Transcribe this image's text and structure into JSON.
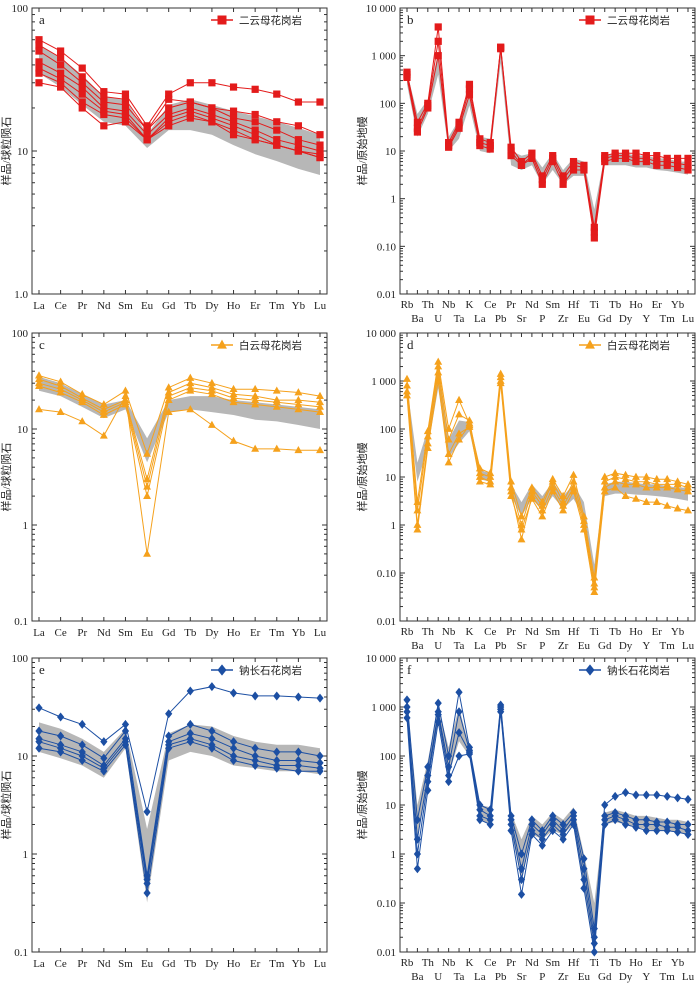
{
  "figure": {
    "colors": {
      "red": "#e31b1b",
      "orange": "#f5a11c",
      "blue": "#1c4fa3",
      "band": "#b7b7b7"
    },
    "ree_elements": [
      "La",
      "Ce",
      "Pr",
      "Nd",
      "Sm",
      "Eu",
      "Gd",
      "Tb",
      "Dy",
      "Ho",
      "Er",
      "Tm",
      "Yb",
      "Lu"
    ],
    "spider_top": [
      "Rb",
      "Th",
      "Nb",
      "K",
      "Ce",
      "Pr",
      "Nd",
      "Sm",
      "Hf",
      "Ti",
      "Tb",
      "Ho",
      "Er",
      "Yb"
    ],
    "spider_bottom": [
      "Ba",
      "U",
      "Ta",
      "La",
      "Pb",
      "Sr",
      "P",
      "Zr",
      "Eu",
      "Gd",
      "Dy",
      "Y",
      "Tm",
      "Lu"
    ],
    "ylabel_ree": "样品/球粒陨石",
    "ylabel_spider": "样品/原始地幔"
  },
  "chart_data": [
    {
      "id": "a",
      "letter": "a",
      "type": "line",
      "kind": "ree",
      "legend": "二云母花岗岩",
      "color": "red",
      "marker": "square",
      "y_scale": "log",
      "ylim": [
        1,
        100
      ],
      "y_ticks": [
        "1.0",
        "10",
        "100"
      ],
      "series": [
        {
          "values": [
            60,
            50,
            38,
            26,
            25,
            15,
            25,
            30,
            30,
            28,
            27,
            25,
            22,
            22
          ]
        },
        {
          "values": [
            55,
            45,
            33,
            24,
            23,
            14,
            23,
            22,
            20,
            19,
            18,
            16,
            15,
            13
          ]
        },
        {
          "values": [
            50,
            40,
            30,
            22,
            21,
            14,
            20,
            22,
            20,
            17,
            16,
            14,
            12,
            11
          ]
        },
        {
          "values": [
            42,
            35,
            28,
            20,
            19,
            13,
            18,
            20,
            18,
            16,
            14,
            12,
            11,
            10
          ]
        },
        {
          "values": [
            38,
            32,
            25,
            19,
            18,
            12,
            17,
            19,
            17,
            15,
            13,
            11,
            10,
            9.5
          ]
        },
        {
          "values": [
            35,
            30,
            22,
            18,
            17,
            12,
            16,
            18,
            16,
            14,
            12,
            11,
            10,
            9
          ]
        },
        {
          "values": [
            30,
            28,
            20,
            15,
            16,
            12,
            15,
            17,
            16,
            13,
            12,
            11,
            10,
            9
          ]
        }
      ],
      "band_upper": [
        55,
        45,
        34,
        24,
        23,
        13,
        21,
        23,
        21,
        19,
        17.5,
        16,
        14.5,
        13
      ],
      "band_lower": [
        35,
        28,
        21,
        16,
        15,
        10.5,
        14,
        14,
        13,
        11,
        9.5,
        8.5,
        7.5,
        6.8
      ]
    },
    {
      "id": "b",
      "letter": "b",
      "type": "line",
      "kind": "spider",
      "legend": "二云母花岗岩",
      "color": "red",
      "marker": "square",
      "y_scale": "log",
      "ylim": [
        0.01,
        10000
      ],
      "y_ticks": [
        "0.01",
        "0.10",
        "1",
        "10",
        "100",
        "1 000",
        "10 000"
      ],
      "series": [
        {
          "values": [
            450,
            40,
            100,
            4000,
            15,
            40,
            250,
            18,
            15,
            1500,
            12,
            6,
            9,
            3,
            8,
            3,
            6,
            5,
            0.25,
            8,
            9,
            9,
            9,
            8,
            8,
            7,
            7,
            7
          ]
        },
        {
          "values": [
            400,
            30,
            90,
            2000,
            13,
            35,
            200,
            15,
            13,
            1500,
            10,
            5,
            8,
            2.5,
            7,
            2.5,
            5,
            4.5,
            0.2,
            7,
            8,
            8,
            7,
            7,
            6,
            6,
            5.5,
            5
          ]
        },
        {
          "values": [
            350,
            25,
            80,
            1000,
            12,
            30,
            150,
            13,
            11,
            1400,
            8,
            5,
            7,
            2,
            6,
            2,
            4,
            4,
            0.15,
            6,
            7,
            7,
            6,
            6,
            5,
            5,
            4.5,
            4
          ]
        }
      ],
      "band_upper": [
        450,
        60,
        120,
        1200,
        20,
        45,
        160,
        20,
        18,
        1600,
        10,
        8,
        9,
        4.5,
        9,
        4,
        7,
        6,
        0.6,
        8,
        9,
        9,
        8,
        8,
        7,
        7,
        6,
        6
      ],
      "band_lower": [
        250,
        20,
        60,
        400,
        10,
        18,
        90,
        10,
        9,
        700,
        5,
        4,
        5,
        2,
        4,
        2,
        3,
        3,
        0.2,
        5,
        5,
        5,
        4.5,
        4.5,
        4,
        3.8,
        3.5,
        3.2
      ]
    },
    {
      "id": "c",
      "letter": "c",
      "type": "line",
      "kind": "ree",
      "legend": "白云母花岗岩",
      "color": "orange",
      "marker": "triangle",
      "y_scale": "log",
      "ylim": [
        0.1,
        100
      ],
      "y_ticks": [
        "0.1",
        "1",
        "10",
        "100"
      ],
      "series": [
        {
          "values": [
            36,
            31,
            23,
            18,
            25,
            5.5,
            27,
            34,
            30,
            26,
            26,
            25,
            24,
            22
          ]
        },
        {
          "values": [
            33,
            28,
            21,
            16,
            20,
            3,
            24,
            30,
            27,
            23,
            22,
            20,
            20,
            19
          ]
        },
        {
          "values": [
            30,
            26,
            20,
            15,
            19,
            2.5,
            22,
            27,
            25,
            21,
            20,
            19,
            18,
            17
          ]
        },
        {
          "values": [
            28,
            24,
            19,
            14,
            18,
            2,
            20,
            25,
            23,
            19,
            18,
            17,
            16,
            15
          ]
        },
        {
          "values": [
            16,
            15,
            12,
            8.5,
            22,
            0.5,
            15,
            16,
            11,
            7.5,
            6.2,
            6.2,
            6,
            6
          ]
        }
      ],
      "band_upper": [
        35,
        30,
        23,
        18,
        20,
        8,
        20,
        22,
        22,
        20,
        19,
        18,
        17,
        16
      ],
      "band_lower": [
        25,
        22,
        17,
        13,
        16,
        4.5,
        15,
        16,
        15,
        14,
        12.5,
        12,
        11,
        10
      ]
    },
    {
      "id": "d",
      "letter": "d",
      "type": "line",
      "kind": "spider",
      "legend": "白云母花岗岩",
      "color": "orange",
      "marker": "triangle",
      "y_scale": "log",
      "ylim": [
        0.01,
        10000
      ],
      "y_ticks": [
        "0.01",
        "0.10",
        "1",
        "10",
        "100",
        "1 000",
        "10 000"
      ],
      "series": [
        {
          "values": [
            1100,
            3,
            90,
            2500,
            100,
            400,
            130,
            15,
            12,
            1400,
            8,
            1.5,
            6,
            3,
            9,
            4,
            11,
            1.5,
            0.08,
            10,
            12,
            11,
            10,
            10,
            9,
            9,
            8,
            7
          ]
        },
        {
          "values": [
            800,
            2,
            70,
            2000,
            60,
            200,
            150,
            12,
            10,
            1200,
            6,
            1,
            5,
            2.5,
            8,
            3,
            8,
            1.2,
            0.06,
            8,
            10,
            9,
            8,
            8,
            7,
            7,
            7,
            6
          ]
        },
        {
          "values": [
            600,
            1,
            50,
            1500,
            30,
            80,
            110,
            10,
            8,
            1000,
            5,
            0.5,
            4,
            2,
            6,
            2.5,
            6,
            1,
            0.05,
            6,
            8,
            7,
            7,
            6,
            6,
            6,
            5.5,
            5
          ]
        },
        {
          "values": [
            500,
            0.8,
            40,
            1000,
            20,
            60,
            120,
            8,
            7,
            900,
            4,
            0.8,
            3.5,
            1.5,
            5,
            2,
            5,
            0.8,
            0.04,
            5,
            6,
            4,
            3.5,
            3,
            3,
            2.5,
            2.2,
            2
          ]
        }
      ],
      "band_upper": [
        800,
        20,
        100,
        2000,
        60,
        150,
        140,
        14,
        12,
        1300,
        7,
        3,
        7,
        4,
        8,
        4,
        7,
        3,
        0.15,
        7,
        8,
        8,
        7.5,
        7,
        7,
        6.5,
        6,
        6
      ],
      "band_lower": [
        400,
        8,
        40,
        700,
        25,
        50,
        90,
        9,
        8,
        800,
        4,
        1.5,
        3.5,
        2,
        4,
        2.2,
        3.5,
        1.5,
        0.05,
        4,
        4.5,
        4.5,
        4.3,
        4.2,
        4,
        3.8,
        3.5,
        3.2
      ]
    },
    {
      "id": "e",
      "letter": "e",
      "type": "line",
      "kind": "ree",
      "legend": "钠长石花岗岩",
      "color": "blue",
      "marker": "diamond",
      "y_scale": "log",
      "ylim": [
        0.1,
        100
      ],
      "y_ticks": [
        "0.1",
        "1",
        "10",
        "100"
      ],
      "series": [
        {
          "values": [
            31,
            25,
            21,
            14,
            21,
            2.7,
            27,
            46,
            51,
            44,
            41,
            41,
            40,
            39
          ]
        },
        {
          "values": [
            18,
            16,
            13,
            9.5,
            18,
            0.6,
            16,
            21,
            18,
            14,
            12,
            11,
            11,
            10
          ]
        },
        {
          "values": [
            15,
            13,
            11,
            8,
            15,
            0.55,
            14,
            17,
            15,
            12,
            10,
            9,
            9,
            8.5
          ]
        },
        {
          "values": [
            14,
            12,
            10,
            7.5,
            14,
            0.5,
            13,
            15,
            13,
            10,
            9,
            8,
            8,
            7.5
          ]
        },
        {
          "values": [
            12,
            11,
            9,
            7,
            13,
            0.4,
            12,
            14,
            12,
            9,
            8,
            7.5,
            7,
            7
          ]
        }
      ],
      "band_upper": [
        22,
        19,
        15,
        11,
        19,
        1.8,
        17,
        21,
        20,
        16,
        14,
        13,
        13,
        12
      ],
      "band_lower": [
        11,
        9.5,
        8,
        6,
        12,
        0.32,
        9,
        11,
        10,
        8,
        7.5,
        7,
        7,
        6.5
      ]
    },
    {
      "id": "f",
      "letter": "f",
      "type": "line",
      "kind": "spider",
      "legend": "钠长石花岗岩",
      "color": "blue",
      "marker": "diamond",
      "y_scale": "log",
      "ylim": [
        0.01,
        10000
      ],
      "y_ticks": [
        "0.01",
        "0.10",
        "1",
        "10",
        "100",
        "1 000",
        "10 000"
      ],
      "series": [
        {
          "values": [
            1400,
            5,
            60,
            1200,
            100,
            2000,
            150,
            10,
            8,
            1100,
            6,
            1,
            5,
            3,
            6,
            4,
            7,
            0.8,
            0.03,
            10,
            15,
            18,
            16,
            16,
            16,
            15,
            14,
            13
          ]
        },
        {
          "values": [
            1000,
            2,
            40,
            800,
            60,
            800,
            130,
            8,
            6,
            1000,
            5,
            0.5,
            4,
            2.5,
            5,
            3,
            6,
            0.5,
            0.02,
            6,
            7,
            6,
            5,
            5,
            4.5,
            4.5,
            4,
            4
          ]
        },
        {
          "values": [
            800,
            1,
            30,
            700,
            40,
            300,
            120,
            6,
            5,
            900,
            4,
            0.3,
            3,
            2,
            4,
            2.5,
            5,
            0.3,
            0.015,
            5,
            6,
            5,
            4,
            4,
            4,
            3.5,
            3.5,
            3
          ]
        },
        {
          "values": [
            600,
            0.5,
            20,
            500,
            30,
            100,
            110,
            5,
            4,
            800,
            3,
            0.15,
            2.5,
            1.5,
            3,
            2,
            4,
            0.2,
            0.01,
            4,
            5,
            4,
            3.5,
            3,
            3,
            3,
            2.8,
            2.5
          ]
        }
      ],
      "band_upper": [
        1200,
        10,
        80,
        1000,
        150,
        1000,
        150,
        10,
        9,
        1300,
        7,
        2,
        6,
        4,
        7,
        5,
        9,
        1,
        0.1,
        7,
        8,
        7,
        6,
        6,
        5.5,
        5,
        5,
        4.5
      ],
      "band_lower": [
        500,
        2,
        30,
        500,
        40,
        200,
        100,
        5,
        4,
        700,
        3,
        0.3,
        2.5,
        2,
        3,
        2.5,
        4,
        0.2,
        0.01,
        4,
        4.5,
        4,
        3.5,
        3.2,
        3,
        3,
        2.8,
        2.5
      ]
    }
  ]
}
